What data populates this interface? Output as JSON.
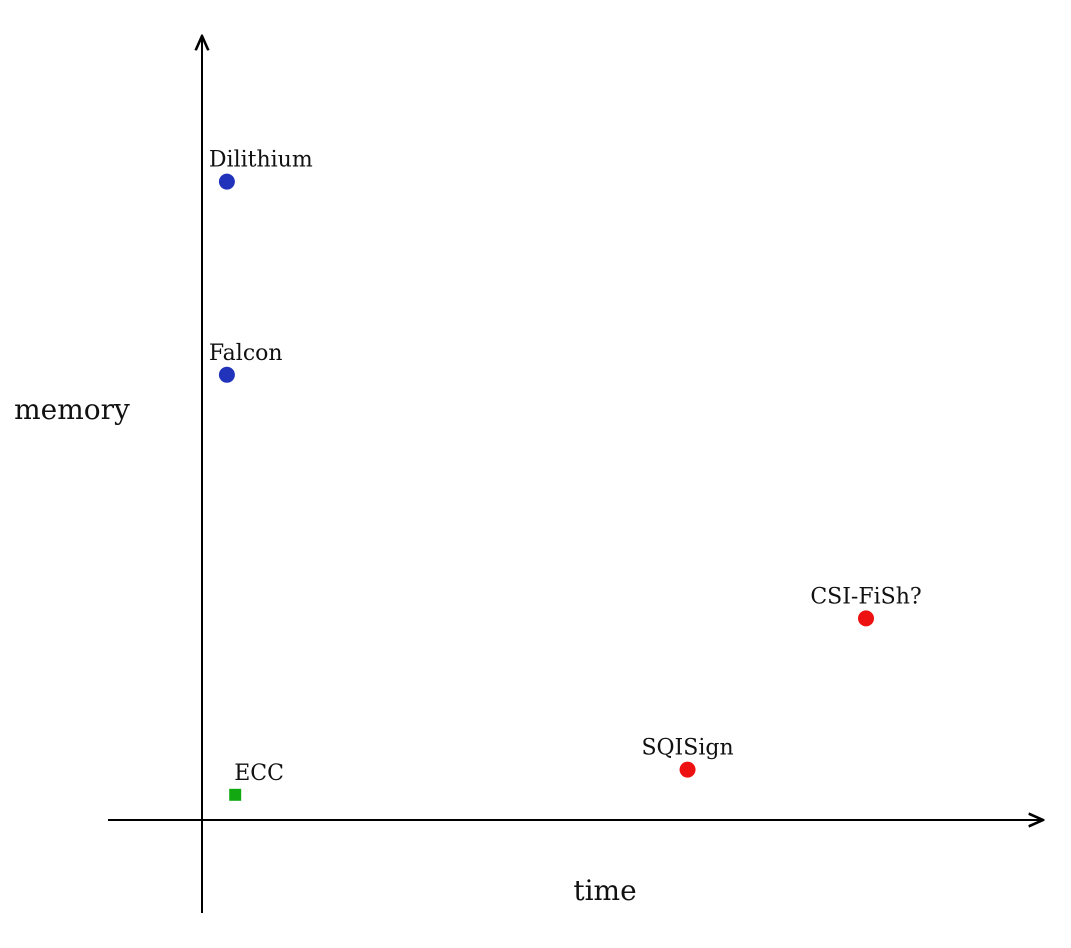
{
  "chart_data": {
    "type": "scatter",
    "title": "",
    "xlabel": "time",
    "ylabel": "memory",
    "grid": false,
    "legend": "none",
    "points": [
      {
        "label": "Dilithium",
        "x": 0.3,
        "y": 7.6,
        "marker": "circle",
        "color": "#2233bb"
      },
      {
        "label": "Falcon",
        "x": 0.3,
        "y": 5.3,
        "marker": "circle",
        "color": "#2233bb"
      },
      {
        "label": "ECC",
        "x": 0.4,
        "y": 0.3,
        "marker": "square",
        "color": "#12a812"
      },
      {
        "label": "SQISign",
        "x": 5.85,
        "y": 0.6,
        "marker": "circle",
        "color": "#ee1111"
      },
      {
        "label": "CSI-FiSh?",
        "x": 8.0,
        "y": 2.4,
        "marker": "circle",
        "color": "#ee1111"
      }
    ]
  }
}
